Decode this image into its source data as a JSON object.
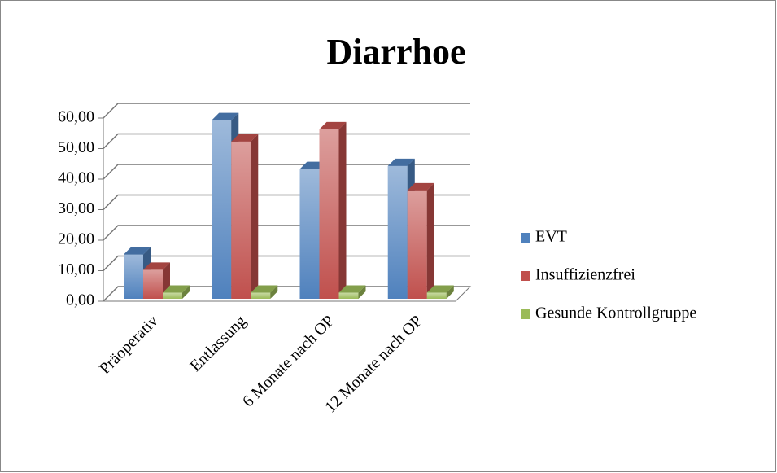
{
  "chart_data": {
    "type": "bar3d",
    "title": "Diarrhoe",
    "categories": [
      "Präoperativ",
      "Entlassung",
      "6 Monate nach OP",
      "12 Monate nach OP"
    ],
    "series": [
      {
        "name": "EVT",
        "color": "#4f81bd",
        "values": [
          14.5,
          58.5,
          42.5,
          43.5
        ]
      },
      {
        "name": "Insuffizienzfrei",
        "color": "#c0504d",
        "values": [
          9.5,
          51.5,
          55.5,
          35.5
        ]
      },
      {
        "name": "Gesunde Kontrollgruppe",
        "color": "#9bbb59",
        "values": [
          2,
          2,
          2,
          2
        ]
      }
    ],
    "ylim": [
      0,
      60
    ],
    "yticks": [
      {
        "value": 0,
        "label": "0,00"
      },
      {
        "value": 10,
        "label": "10,00"
      },
      {
        "value": 20,
        "label": "20,00"
      },
      {
        "value": 30,
        "label": "30,00"
      },
      {
        "value": 40,
        "label": "40,00"
      },
      {
        "value": 50,
        "label": "50,00"
      },
      {
        "value": 60,
        "label": "60,00"
      }
    ],
    "grid": true,
    "legend": "right"
  }
}
